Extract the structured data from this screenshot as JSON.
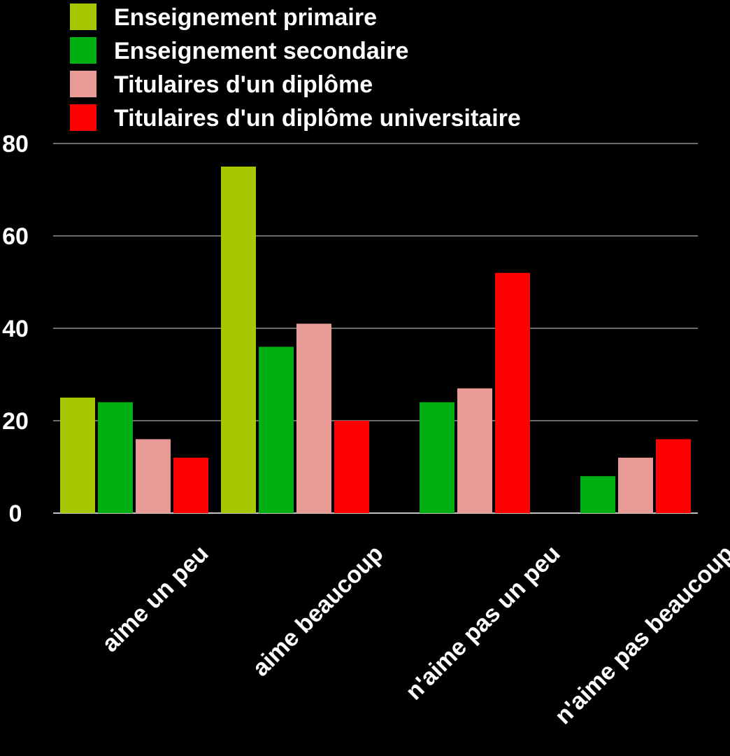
{
  "chart_data": {
    "type": "bar",
    "categories": [
      "aime un peu",
      "aime beaucoup",
      "n'aime pas un peu",
      "n'aime pas beaucoup"
    ],
    "series": [
      {
        "name": "Enseignement primaire",
        "color": "#a5c800",
        "values": [
          25,
          75,
          0,
          0
        ]
      },
      {
        "name": "Enseignement secondaire",
        "color": "#00b012",
        "values": [
          24,
          36,
          24,
          8
        ]
      },
      {
        "name": "Titulaires d'un diplôme",
        "color": "#e89a96",
        "values": [
          16,
          41,
          27,
          12
        ]
      },
      {
        "name": "Titulaires d'un diplôme universitaire",
        "color": "#ff0000",
        "values": [
          12,
          20,
          52,
          16
        ]
      }
    ],
    "ylim": [
      0,
      80
    ],
    "yticks": [
      0,
      20,
      40,
      60,
      80
    ],
    "grid": true,
    "legend_position": "top-left",
    "background": "#000000",
    "text_color": "#ffffff",
    "grid_color": "#ffffff"
  }
}
